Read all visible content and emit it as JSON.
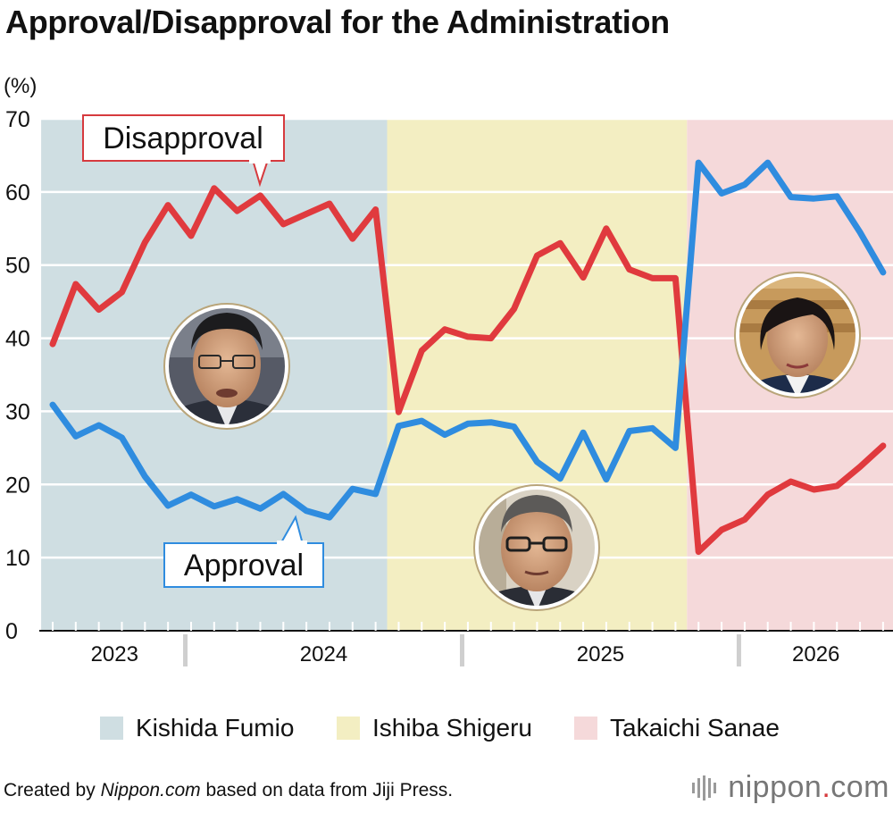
{
  "title": "Approval/Disapproval for the Administration",
  "credit": {
    "prefix": "Created by ",
    "site": "Nippon.com",
    "suffix": " based on data from Jiji Press."
  },
  "logo": {
    "main": "nippon",
    "dot": ".",
    "tld": "com"
  },
  "chart_data": {
    "type": "line",
    "unit_label": "(%)",
    "ylim": [
      0,
      70
    ],
    "yticks": [
      "0",
      "10",
      "20",
      "30",
      "40",
      "50",
      "60",
      "70"
    ],
    "grid": true,
    "x_group_labels": [
      "2023",
      "2024",
      "2025",
      "2026"
    ],
    "x_group_bounds": [
      [
        0,
        5.75
      ],
      [
        5.75,
        17.75
      ],
      [
        17.75,
        29.75
      ],
      [
        29.75,
        36.5
      ]
    ],
    "n_months": 37,
    "periods": [
      {
        "name": "Kishida Fumio",
        "start": -0.5,
        "end": 14.5,
        "color": "#cfdee2"
      },
      {
        "name": "Ishiba Shigeru",
        "start": 14.5,
        "end": 27.5,
        "color": "#f3eec2"
      },
      {
        "name": "Takaichi Sanae",
        "start": 27.5,
        "end": 36.5,
        "color": "#f5d9da"
      }
    ],
    "series": [
      {
        "name": "Disapproval",
        "color": "#e03a3e",
        "values": [
          39.2,
          47.4,
          43.9,
          46.3,
          53.1,
          58.2,
          54.0,
          60.5,
          57.4,
          59.5,
          55.6,
          57.0,
          58.4,
          53.6,
          57.6,
          29.9,
          38.3,
          41.2,
          40.2,
          40.0,
          44.0,
          51.3,
          53.0,
          48.3,
          55.0,
          49.4,
          48.2,
          48.2,
          10.8,
          13.8,
          15.2,
          18.6,
          20.4,
          19.3,
          19.8,
          22.4,
          25.3
        ]
      },
      {
        "name": "Approval",
        "color": "#2f8cdf",
        "values": [
          30.9,
          26.6,
          28.1,
          26.4,
          21.1,
          17.1,
          18.6,
          17.0,
          18.0,
          16.7,
          18.7,
          16.4,
          15.5,
          19.4,
          18.7,
          28.0,
          28.7,
          26.8,
          28.3,
          28.5,
          27.9,
          23.1,
          20.8,
          27.1,
          20.7,
          27.3,
          27.7,
          25.0,
          64.0,
          59.8,
          61.0,
          64.0,
          59.3,
          59.1,
          59.4,
          54.5,
          49.0
        ]
      }
    ],
    "annotations": [
      {
        "text": "Disapproval",
        "series": "Disapproval",
        "point_index": 9
      },
      {
        "text": "Approval",
        "series": "Approval",
        "point_index": 11
      }
    ]
  }
}
